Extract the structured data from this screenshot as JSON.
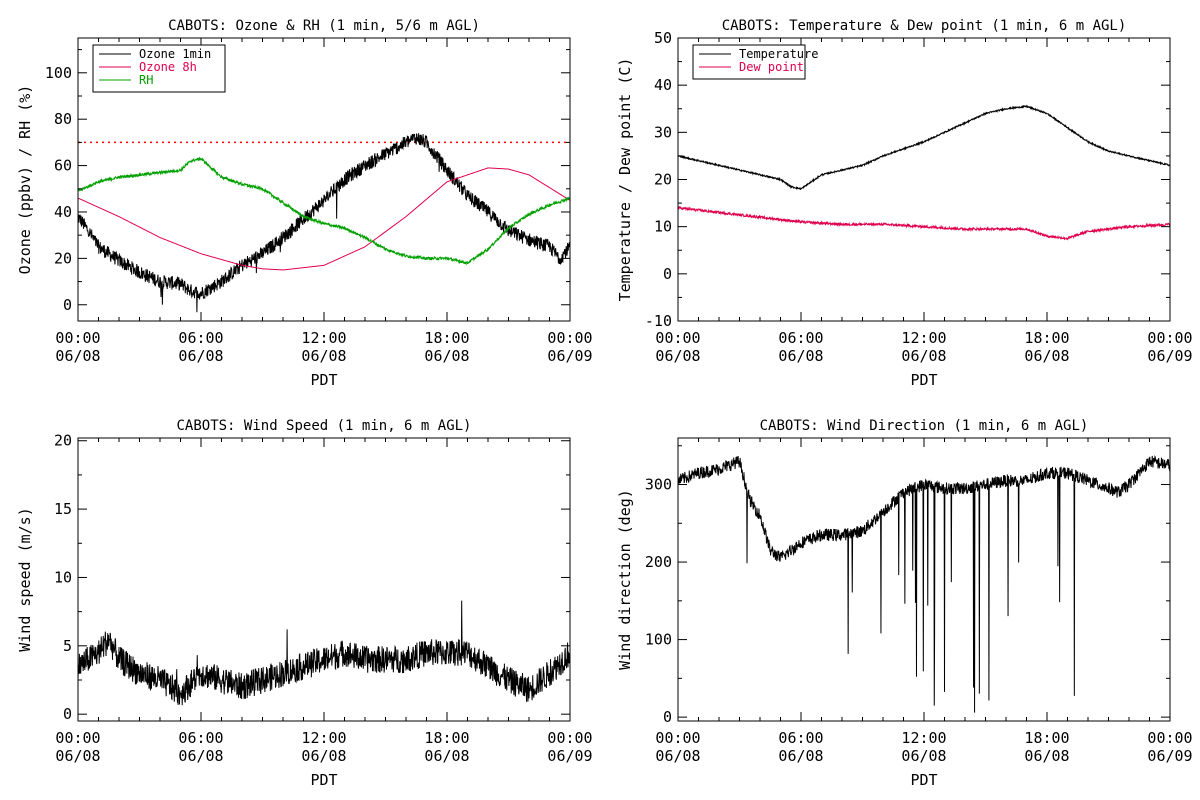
{
  "colors": {
    "black": "#000000",
    "magenta": "#e0004a",
    "green": "#00a000",
    "red_dotted": "#ff0000"
  },
  "chart_data": [
    {
      "type": "line",
      "title": "CABOTS: Ozone & RH (1 min, 5/6 m AGL)",
      "xlabel": "PDT",
      "ylabel": "Ozone (ppbv) / RH (%)",
      "x_ticks": [
        [
          "00:00",
          "06/08"
        ],
        [
          "06:00",
          "06/08"
        ],
        [
          "12:00",
          "06/08"
        ],
        [
          "18:00",
          "06/08"
        ],
        [
          "00:00",
          "06/09"
        ]
      ],
      "xlim_hours": [
        0,
        24
      ],
      "ylim": [
        -7,
        115
      ],
      "y_ticks": [
        0,
        20,
        40,
        60,
        80,
        100
      ],
      "reference_line": 70,
      "legend": "top-left",
      "series": [
        {
          "name": "Ozone 1min",
          "color": "#000000",
          "noise": 3.0,
          "x": [
            0,
            0.5,
            1,
            2,
            3,
            4,
            5,
            5.5,
            6,
            7,
            8,
            9,
            10,
            11,
            12,
            13,
            14,
            15,
            16,
            16.5,
            17,
            18,
            19,
            20,
            21,
            22,
            23,
            23.5,
            24
          ],
          "values": [
            38,
            32,
            25,
            19,
            14,
            10,
            9,
            6,
            5,
            10,
            17,
            22,
            29,
            37,
            45,
            54,
            60,
            65,
            70,
            72,
            70,
            58,
            47,
            40,
            32,
            28,
            25,
            20,
            25
          ]
        },
        {
          "name": "Ozone 8h",
          "color": "#e0004a",
          "noise": 0,
          "x": [
            0,
            2,
            4,
            6,
            8,
            9,
            10,
            12,
            14,
            16,
            18,
            20,
            21,
            22,
            24
          ],
          "values": [
            46,
            38,
            29,
            22,
            17,
            15.5,
            15,
            17,
            25,
            38,
            53,
            59,
            58.5,
            56,
            45
          ]
        },
        {
          "name": "RH",
          "color": "#00a000",
          "noise": 0.6,
          "x": [
            0,
            1,
            2,
            3,
            4,
            5,
            5.5,
            6,
            7,
            8,
            9,
            10,
            11,
            12,
            13,
            14,
            15,
            16,
            17,
            18,
            19,
            20,
            21,
            22,
            23,
            24
          ],
          "values": [
            49,
            53,
            55,
            56,
            57,
            58,
            62,
            63,
            55,
            52,
            50,
            44,
            38,
            35,
            33,
            29,
            24,
            21,
            20,
            20,
            18,
            24,
            33,
            39,
            43,
            46
          ]
        }
      ]
    },
    {
      "type": "line",
      "title": "CABOTS: Temperature & Dew point (1 min, 6 m AGL)",
      "xlabel": "PDT",
      "ylabel": "Temperature / Dew point (C)",
      "x_ticks": [
        [
          "00:00",
          "06/08"
        ],
        [
          "06:00",
          "06/08"
        ],
        [
          "12:00",
          "06/08"
        ],
        [
          "18:00",
          "06/08"
        ],
        [
          "00:00",
          "06/09"
        ]
      ],
      "xlim_hours": [
        0,
        24
      ],
      "ylim": [
        -10,
        50
      ],
      "y_ticks": [
        -10,
        0,
        10,
        20,
        30,
        40,
        50
      ],
      "legend": "top-left",
      "series": [
        {
          "name": "Temperature",
          "color": "#000000",
          "noise": 0.15,
          "x": [
            0,
            1,
            2,
            3,
            4,
            5,
            5.5,
            6,
            7,
            8,
            9,
            10,
            11,
            12,
            13,
            14,
            15,
            16,
            17,
            18,
            19,
            20,
            21,
            22,
            23,
            24
          ],
          "values": [
            25,
            24,
            23,
            22,
            21,
            20,
            18.5,
            18,
            21,
            22,
            23,
            25,
            26.5,
            28,
            30,
            32,
            34,
            35,
            35.5,
            34,
            31,
            28,
            26,
            25,
            24,
            23
          ]
        },
        {
          "name": "Dew point",
          "color": "#e0004a",
          "noise": 0.25,
          "x": [
            0,
            2,
            4,
            6,
            8,
            10,
            12,
            14,
            16,
            17,
            18,
            19,
            20,
            22,
            24
          ],
          "values": [
            14,
            13,
            12,
            11,
            10.5,
            10.5,
            10,
            9.5,
            9.5,
            9.5,
            8,
            7.5,
            9,
            10,
            10.5
          ]
        }
      ]
    },
    {
      "type": "line",
      "title": "CABOTS: Wind Speed (1 min, 6 m AGL)",
      "xlabel": "PDT",
      "ylabel": "Wind speed (m/s)",
      "x_ticks": [
        [
          "00:00",
          "06/08"
        ],
        [
          "06:00",
          "06/08"
        ],
        [
          "12:00",
          "06/08"
        ],
        [
          "18:00",
          "06/08"
        ],
        [
          "00:00",
          "06/09"
        ]
      ],
      "xlim_hours": [
        0,
        24
      ],
      "ylim": [
        -0.5,
        20.2
      ],
      "y_ticks": [
        0,
        5,
        10,
        15,
        20
      ],
      "series": [
        {
          "name": "",
          "color": "#000000",
          "noise": 1.0,
          "x": [
            0,
            1,
            1.5,
            2,
            3,
            4,
            5,
            6,
            7,
            8,
            9,
            10,
            11,
            12,
            13,
            14,
            15,
            16,
            17,
            18,
            19,
            20,
            21,
            22,
            23,
            24
          ],
          "values": [
            3.5,
            4.5,
            5.5,
            4,
            3,
            2.5,
            1.5,
            3,
            2.5,
            2,
            2.5,
            3,
            3.5,
            4,
            4.5,
            4,
            4,
            4,
            4.5,
            4.5,
            4.5,
            3.5,
            2.5,
            1.8,
            3,
            4.5
          ]
        }
      ]
    },
    {
      "type": "line",
      "title": "CABOTS: Wind Direction (1 min, 6 m AGL)",
      "xlabel": "PDT",
      "ylabel": "Wind direction (deg)",
      "x_ticks": [
        [
          "00:00",
          "06/08"
        ],
        [
          "06:00",
          "06/08"
        ],
        [
          "12:00",
          "06/08"
        ],
        [
          "18:00",
          "06/08"
        ],
        [
          "00:00",
          "06/09"
        ]
      ],
      "xlim_hours": [
        0,
        24
      ],
      "ylim": [
        -5,
        360
      ],
      "y_ticks": [
        0,
        100,
        200,
        300
      ],
      "series": [
        {
          "name": "",
          "color": "#000000",
          "noise": 8,
          "x": [
            0,
            1,
            2,
            3,
            3.5,
            4,
            4.5,
            5,
            6,
            7,
            8,
            9,
            10,
            11,
            12,
            13,
            14,
            15,
            16,
            17,
            18,
            19,
            20,
            21,
            21.5,
            22,
            23,
            24
          ],
          "values": [
            305,
            315,
            320,
            330,
            280,
            260,
            215,
            205,
            225,
            235,
            235,
            240,
            265,
            290,
            300,
            295,
            295,
            300,
            305,
            305,
            315,
            315,
            305,
            295,
            290,
            300,
            330,
            325
          ]
        }
      ]
    }
  ]
}
